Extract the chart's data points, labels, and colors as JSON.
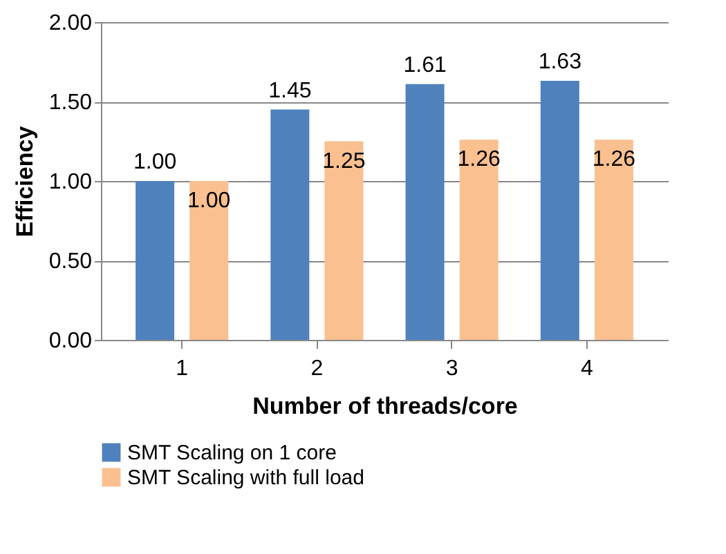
{
  "chart_data": {
    "type": "bar",
    "xlabel": "Number of threads/core",
    "ylabel": "Efficiency",
    "categories": [
      "1",
      "2",
      "3",
      "4"
    ],
    "series": [
      {
        "name": "SMT Scaling on 1 core",
        "color": "#4f81bd",
        "values": [
          1.0,
          1.45,
          1.61,
          1.63
        ],
        "value_labels": [
          "1.00",
          "1.45",
          "1.61",
          "1.63"
        ]
      },
      {
        "name": "SMT Scaling with full load",
        "color": "#fac090",
        "values": [
          1.0,
          1.25,
          1.26,
          1.26
        ],
        "value_labels": [
          "1.00",
          "1.25",
          "1.26",
          "1.26"
        ]
      }
    ],
    "ylim": [
      0,
      2
    ],
    "yticks": [
      {
        "value": 0,
        "label": "0.00"
      },
      {
        "value": 0.5,
        "label": "0.50"
      },
      {
        "value": 1,
        "label": "1.00"
      },
      {
        "value": 1.5,
        "label": "1.50"
      },
      {
        "value": 2,
        "label": "2.00"
      }
    ],
    "grid": "y",
    "legend": "bottom"
  }
}
